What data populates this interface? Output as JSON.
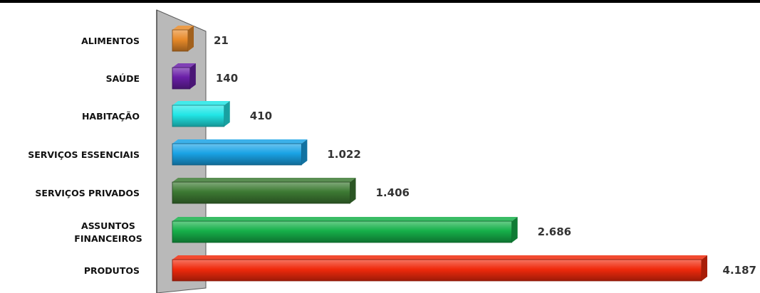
{
  "chart_data": {
    "type": "bar",
    "orientation": "horizontal",
    "categories": [
      "ALIMENTOS",
      "SAÚDE",
      "HABITAÇÃO",
      "SERVIÇOS ESSENCIAIS",
      "SERVIÇOS PRIVADOS",
      "ASSUNTOS FINANCEIROS",
      "PRODUTOS"
    ],
    "category_lines": [
      [
        "ALIMENTOS"
      ],
      [
        "SAÚDE"
      ],
      [
        "HABITAÇÃO"
      ],
      [
        "SERVIÇOS ESSENCIAIS"
      ],
      [
        "SERVIÇOS PRIVADOS"
      ],
      [
        "ASSUNTOS",
        "FINANCEIROS"
      ],
      [
        "PRODUTOS"
      ]
    ],
    "values": [
      21,
      140,
      410,
      1022,
      1406,
      2686,
      4187
    ],
    "value_labels": [
      "21",
      "140",
      "410",
      "1.022",
      "1.406",
      "2.686",
      "4.187"
    ],
    "colors": [
      "#e88a2a",
      "#6a1fa8",
      "#22e6e6",
      "#1aa3e6",
      "#3d7a33",
      "#16b04a",
      "#f02a0c"
    ],
    "xlim": [
      0,
      4187
    ],
    "grid": false,
    "legend": "none",
    "title": "",
    "xlabel": "",
    "ylabel": ""
  }
}
